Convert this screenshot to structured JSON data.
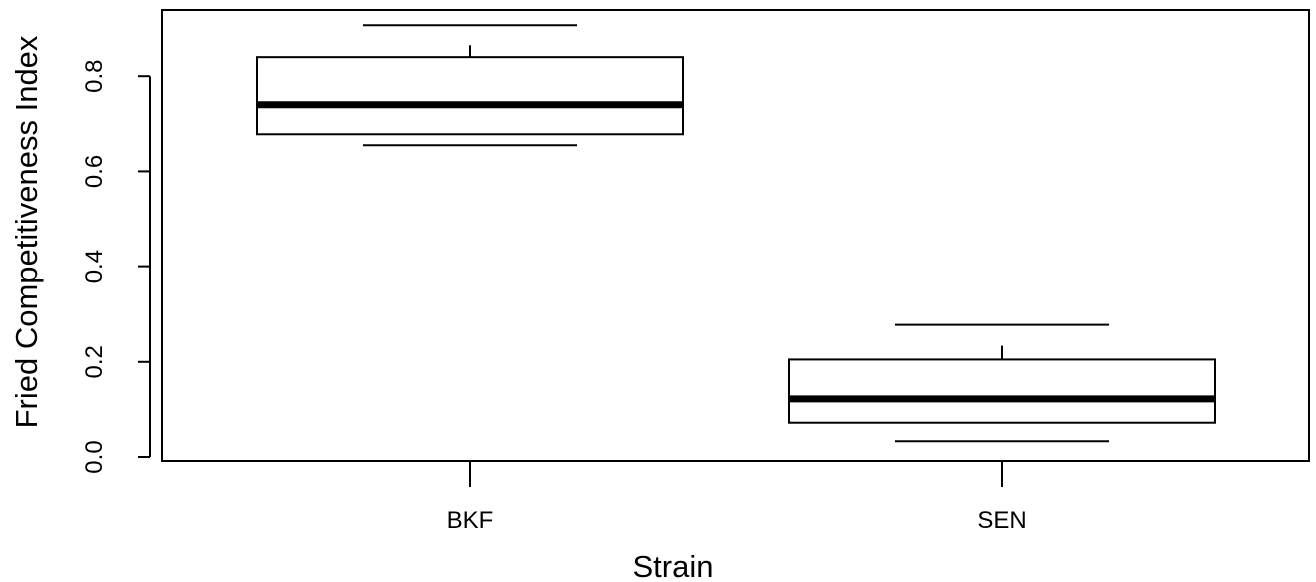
{
  "chart_data": {
    "type": "boxplot",
    "title": "",
    "xlabel": "Strain",
    "ylabel": "Fried Competitiveness Index",
    "ylim": [
      0.0,
      0.94
    ],
    "yticks": [
      "0.0",
      "0.2",
      "0.4",
      "0.6",
      "0.8"
    ],
    "categories": [
      "BKF",
      "SEN"
    ],
    "boxes": [
      {
        "category": "BKF",
        "whisker_low": 0.655,
        "q1": 0.678,
        "median": 0.74,
        "q3": 0.84,
        "whisker_high": 0.907,
        "extra_ticks": [
          0.865
        ]
      },
      {
        "category": "SEN",
        "whisker_low": 0.033,
        "q1": 0.072,
        "median": 0.122,
        "q3": 0.205,
        "whisker_high": 0.278,
        "extra_ticks": [
          0.234
        ]
      }
    ],
    "grid": false,
    "legend": "none"
  }
}
